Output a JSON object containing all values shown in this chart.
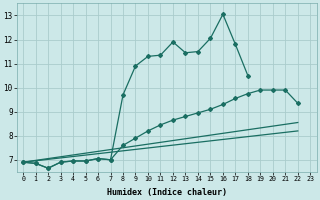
{
  "background_color": "#cce8e8",
  "grid_color": "#aacccc",
  "line_color": "#1a6e62",
  "xlabel": "Humidex (Indice chaleur)",
  "xlim": [
    -0.5,
    23.5
  ],
  "ylim": [
    6.5,
    13.5
  ],
  "yticks": [
    7,
    8,
    9,
    10,
    11,
    12,
    13
  ],
  "xticks": [
    0,
    1,
    2,
    3,
    4,
    5,
    6,
    7,
    8,
    9,
    10,
    11,
    12,
    13,
    14,
    15,
    16,
    17,
    18,
    19,
    20,
    21,
    22,
    23
  ],
  "line1_x": [
    0,
    1,
    2,
    3,
    4,
    5,
    6,
    7,
    8,
    9,
    10,
    11,
    12,
    13,
    14,
    15,
    16,
    17,
    18
  ],
  "line1_y": [
    6.9,
    6.85,
    6.65,
    6.9,
    6.95,
    6.95,
    7.05,
    7.0,
    9.7,
    10.9,
    11.3,
    11.35,
    11.9,
    11.45,
    11.5,
    12.05,
    13.05,
    11.8,
    10.5
  ],
  "line2_x": [
    0,
    1,
    2,
    3,
    4,
    5,
    6,
    7,
    8,
    9,
    10,
    11,
    12,
    13,
    14,
    15,
    16,
    17,
    18,
    19,
    20,
    21,
    22
  ],
  "line2_y": [
    6.9,
    6.85,
    6.65,
    6.9,
    6.95,
    6.95,
    7.05,
    7.0,
    7.6,
    7.9,
    8.2,
    8.45,
    8.65,
    8.8,
    8.95,
    9.1,
    9.3,
    9.55,
    9.75,
    9.9,
    9.9,
    9.9,
    9.35
  ],
  "line3_x": [
    0,
    22
  ],
  "line3_y": [
    6.9,
    8.55
  ],
  "line4_x": [
    0,
    22
  ],
  "line4_y": [
    6.9,
    8.2
  ]
}
